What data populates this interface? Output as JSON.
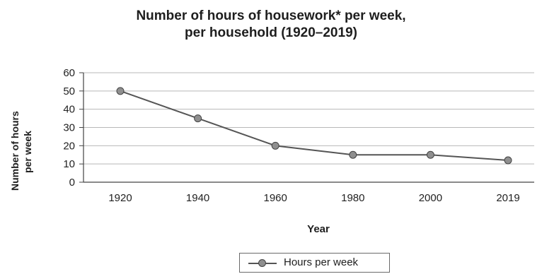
{
  "chart_data": {
    "type": "line",
    "title_line1": "Number of hours of housework* per week,",
    "title_line2": "per household (1920–2019)",
    "xlabel": "Year",
    "ylabel_line1": "Number of hours",
    "ylabel_line2": "per week",
    "categories": [
      "1920",
      "1940",
      "1960",
      "1980",
      "2000",
      "2019"
    ],
    "series": [
      {
        "name": "Hours per week",
        "values": [
          50,
          35,
          20,
          15,
          15,
          12
        ]
      }
    ],
    "ylim": [
      0,
      60
    ],
    "yticks": [
      0,
      10,
      20,
      30,
      40,
      50,
      60
    ],
    "grid": true,
    "legend_position": "bottom-center",
    "colors": {
      "line": "#555555",
      "marker_fill": "#8f8f8f",
      "marker_stroke": "#444444",
      "grid": "#b8b8b8",
      "axis": "#444444"
    }
  }
}
